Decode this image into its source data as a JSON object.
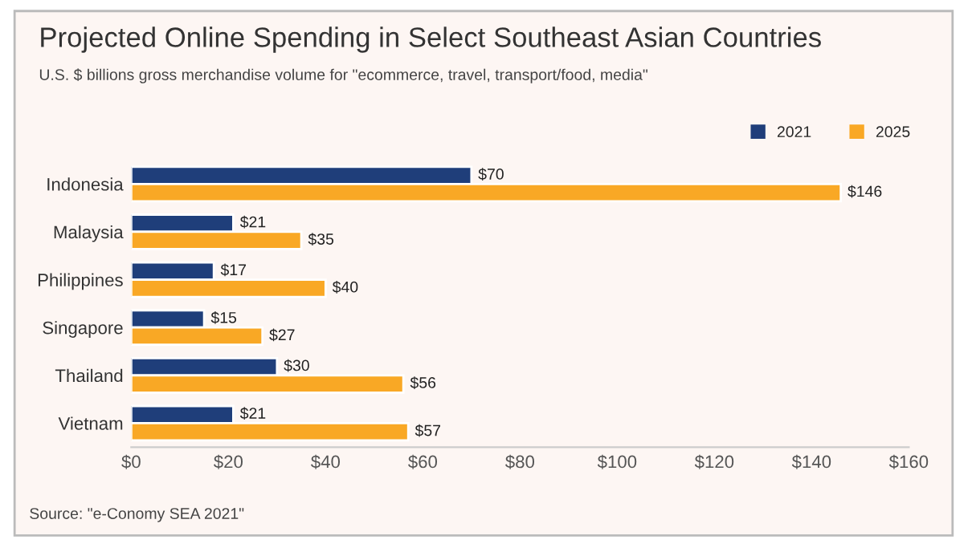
{
  "chart_data": {
    "type": "bar",
    "orientation": "horizontal",
    "title": "Projected Online Spending in Select Southeast Asian Countries",
    "subtitle": "U.S. $ billions gross merchandise volume for \"ecommerce, travel, transport/food, media\"",
    "categories": [
      "Indonesia",
      "Malaysia",
      "Philippines",
      "Singapore",
      "Thailand",
      "Vietnam"
    ],
    "series": [
      {
        "name": "2021",
        "color": "#1f3e7a",
        "values": [
          70,
          21,
          17,
          15,
          30,
          21
        ]
      },
      {
        "name": "2025",
        "color": "#f9a825",
        "values": [
          146,
          35,
          40,
          27,
          56,
          57
        ]
      }
    ],
    "xlim": [
      0,
      160
    ],
    "xticks": [
      {
        "value": 0,
        "label": "$0"
      },
      {
        "value": 20,
        "label": "$20"
      },
      {
        "value": 40,
        "label": "$40"
      },
      {
        "value": 60,
        "label": "$60"
      },
      {
        "value": 80,
        "label": "$80"
      },
      {
        "value": 100,
        "label": "$100"
      },
      {
        "value": 120,
        "label": "$120"
      },
      {
        "value": 140,
        "label": "$140"
      },
      {
        "value": 160,
        "label": "$160"
      }
    ],
    "value_labels": [
      [
        "$70",
        "$21",
        "$17",
        "$15",
        "$30",
        "$21"
      ],
      [
        "$146",
        "$35",
        "$40",
        "$27",
        "$56",
        "$57"
      ]
    ],
    "legend": "top right",
    "grid": false,
    "annotations": [
      "Source: \"e-Conomy SEA 2021\""
    ]
  }
}
